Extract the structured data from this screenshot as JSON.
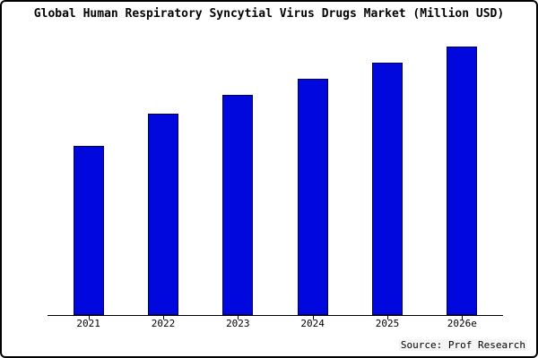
{
  "title": "Global Human Respiratory Syncytial Virus Drugs Market (Million USD)",
  "source": "Source: Prof Research",
  "colors": {
    "bar_fill": "#0008dd",
    "bar_edge": "#000050",
    "frame_border": "#000000",
    "background": "#ffffff"
  },
  "chart_data": {
    "type": "bar",
    "categories": [
      "2021",
      "2022",
      "2023",
      "2024",
      "2025",
      "2026e"
    ],
    "values": [
      63,
      75,
      82,
      88,
      94,
      100
    ],
    "title": "Global Human Respiratory Syncytial Virus Drugs Market (Million USD)",
    "xlabel": "",
    "ylabel": "",
    "ylim": [
      0,
      105
    ],
    "grid": false,
    "legend": false,
    "note": "values are relative units read from bar heights; no y-axis tick labels are shown in the chart"
  }
}
